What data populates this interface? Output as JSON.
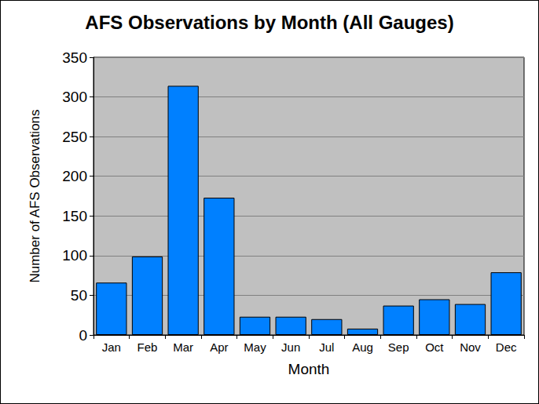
{
  "chart_data": {
    "type": "bar",
    "title": "AFS Observations by Month (All Gauges)",
    "x_label": "Month",
    "y_label": "Number of AFS Observations",
    "categories": [
      "Jan",
      "Feb",
      "Mar",
      "Apr",
      "May",
      "Jun",
      "Jul",
      "Aug",
      "Sep",
      "Oct",
      "Nov",
      "Dec"
    ],
    "values": [
      66,
      99,
      314,
      173,
      23,
      23,
      20,
      8,
      37,
      45,
      39,
      79
    ],
    "color": "#0080ff",
    "ylim": [
      0,
      350
    ],
    "yticks": [
      0,
      50,
      100,
      150,
      200,
      250,
      300,
      350
    ],
    "grid": true
  }
}
